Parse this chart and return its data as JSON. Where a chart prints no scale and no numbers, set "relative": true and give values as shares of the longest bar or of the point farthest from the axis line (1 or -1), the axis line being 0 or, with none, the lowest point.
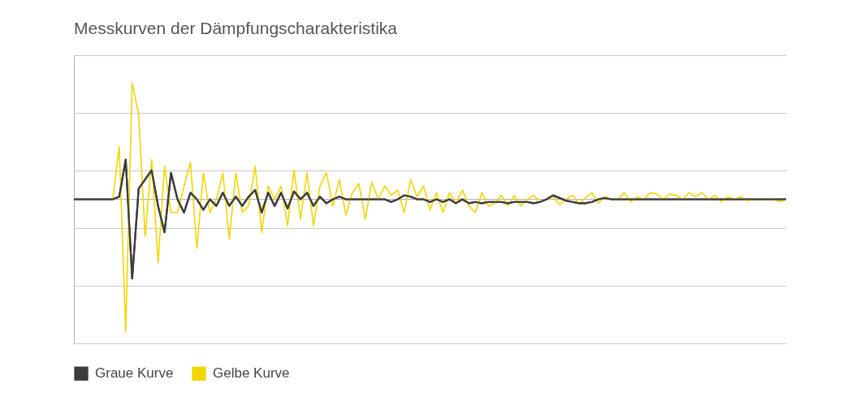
{
  "chart_data": {
    "type": "line",
    "title": "Messkurven der Dämpfungscharakteristika",
    "relative": true,
    "grid": true,
    "legend": "bottom left",
    "categories": [
      null,
      null,
      null,
      null,
      null,
      null,
      null,
      null,
      null,
      null,
      null,
      null,
      null,
      null,
      null,
      null,
      null,
      null,
      null,
      null,
      null,
      null,
      null,
      null,
      null,
      null,
      null,
      null,
      null,
      null,
      null,
      null,
      null,
      null,
      null,
      null,
      null,
      null,
      null,
      null,
      null,
      null,
      null,
      null,
      null,
      null,
      null,
      null,
      null,
      null,
      null,
      null,
      null,
      null,
      null,
      null,
      null,
      null,
      null,
      null,
      null,
      null,
      null,
      null,
      null,
      null,
      null,
      null,
      null,
      null,
      null,
      null,
      null,
      null,
      null,
      null,
      null,
      null,
      null,
      null,
      null,
      null,
      null,
      null,
      null,
      null,
      null,
      null,
      null,
      null,
      null,
      null,
      null,
      null,
      null,
      null,
      null,
      null,
      null,
      null,
      null,
      null,
      null,
      null,
      null,
      null,
      null,
      null,
      null,
      null,
      null
    ],
    "series": [
      {
        "name": "Graue Kurve",
        "color": "#3c3c3c",
        "values": [
          0,
          0,
          0,
          0,
          0,
          0,
          0,
          0.02,
          0.3,
          -0.6,
          0.08,
          0.15,
          0.22,
          -0.05,
          -0.25,
          0.2,
          0,
          -0.1,
          0.05,
          0,
          -0.08,
          0,
          -0.05,
          0.05,
          -0.05,
          0.02,
          -0.05,
          0.02,
          0.07,
          -0.1,
          0.05,
          -0.05,
          0.05,
          -0.07,
          0.06,
          0,
          0.05,
          -0.05,
          0.02,
          -0.03,
          0,
          0.02,
          0,
          0,
          0,
          0,
          0,
          0,
          0,
          -0.02,
          0,
          0.03,
          0.02,
          0,
          0,
          -0.02,
          0,
          -0.02,
          0,
          -0.03,
          0,
          -0.03,
          -0.02,
          -0.03,
          -0.02,
          -0.02,
          -0.02,
          -0.03,
          -0.02,
          -0.02,
          -0.02,
          -0.03,
          -0.02,
          0,
          0.03,
          0.01,
          -0.01,
          -0.02,
          -0.03,
          -0.03,
          -0.02,
          0,
          0.01,
          0,
          0,
          0,
          0,
          0,
          0,
          0,
          0,
          0,
          0,
          0,
          0,
          0,
          0,
          0,
          0,
          0,
          0,
          0,
          0,
          0,
          0,
          0,
          0,
          0,
          0,
          0,
          0
        ]
      },
      {
        "name": "Gelbe Kurve",
        "color": "#f2d600",
        "values": [
          null,
          null,
          null,
          null,
          null,
          null,
          0,
          0.4,
          -1,
          0.88,
          0.64,
          -0.28,
          0.3,
          -0.48,
          0.25,
          -0.1,
          -0.1,
          0.1,
          0.28,
          -0.37,
          0.2,
          -0.1,
          0,
          0.2,
          -0.3,
          0.2,
          -0.1,
          -0.05,
          0.25,
          -0.25,
          0.1,
          0,
          0.1,
          -0.2,
          0.22,
          -0.15,
          0.2,
          -0.2,
          0.1,
          0.2,
          -0.05,
          0.15,
          -0.12,
          0.05,
          0.12,
          -0.15,
          0.13,
          0,
          0.1,
          0.03,
          0.07,
          -0.1,
          0.15,
          0.02,
          0.1,
          -0.08,
          0.05,
          -0.1,
          0.05,
          -0.03,
          0.07,
          -0.05,
          -0.1,
          0.05,
          -0.05,
          -0.03,
          0.03,
          -0.05,
          0.03,
          -0.05,
          0,
          0.03,
          -0.02,
          0,
          0.02,
          -0.04,
          0,
          0.03,
          -0.03,
          0.01,
          0.05,
          -0.03,
          0.02,
          0,
          0,
          0.05,
          -0.02,
          0.02,
          0,
          0.05,
          0.04,
          0,
          0.04,
          0.03,
          0,
          0.05,
          0.02,
          0.05,
          0,
          0.03,
          -0.02,
          0.02,
          0,
          0.02,
          -0.01,
          0,
          0,
          0,
          0,
          -0.02,
          0
        ]
      }
    ]
  }
}
